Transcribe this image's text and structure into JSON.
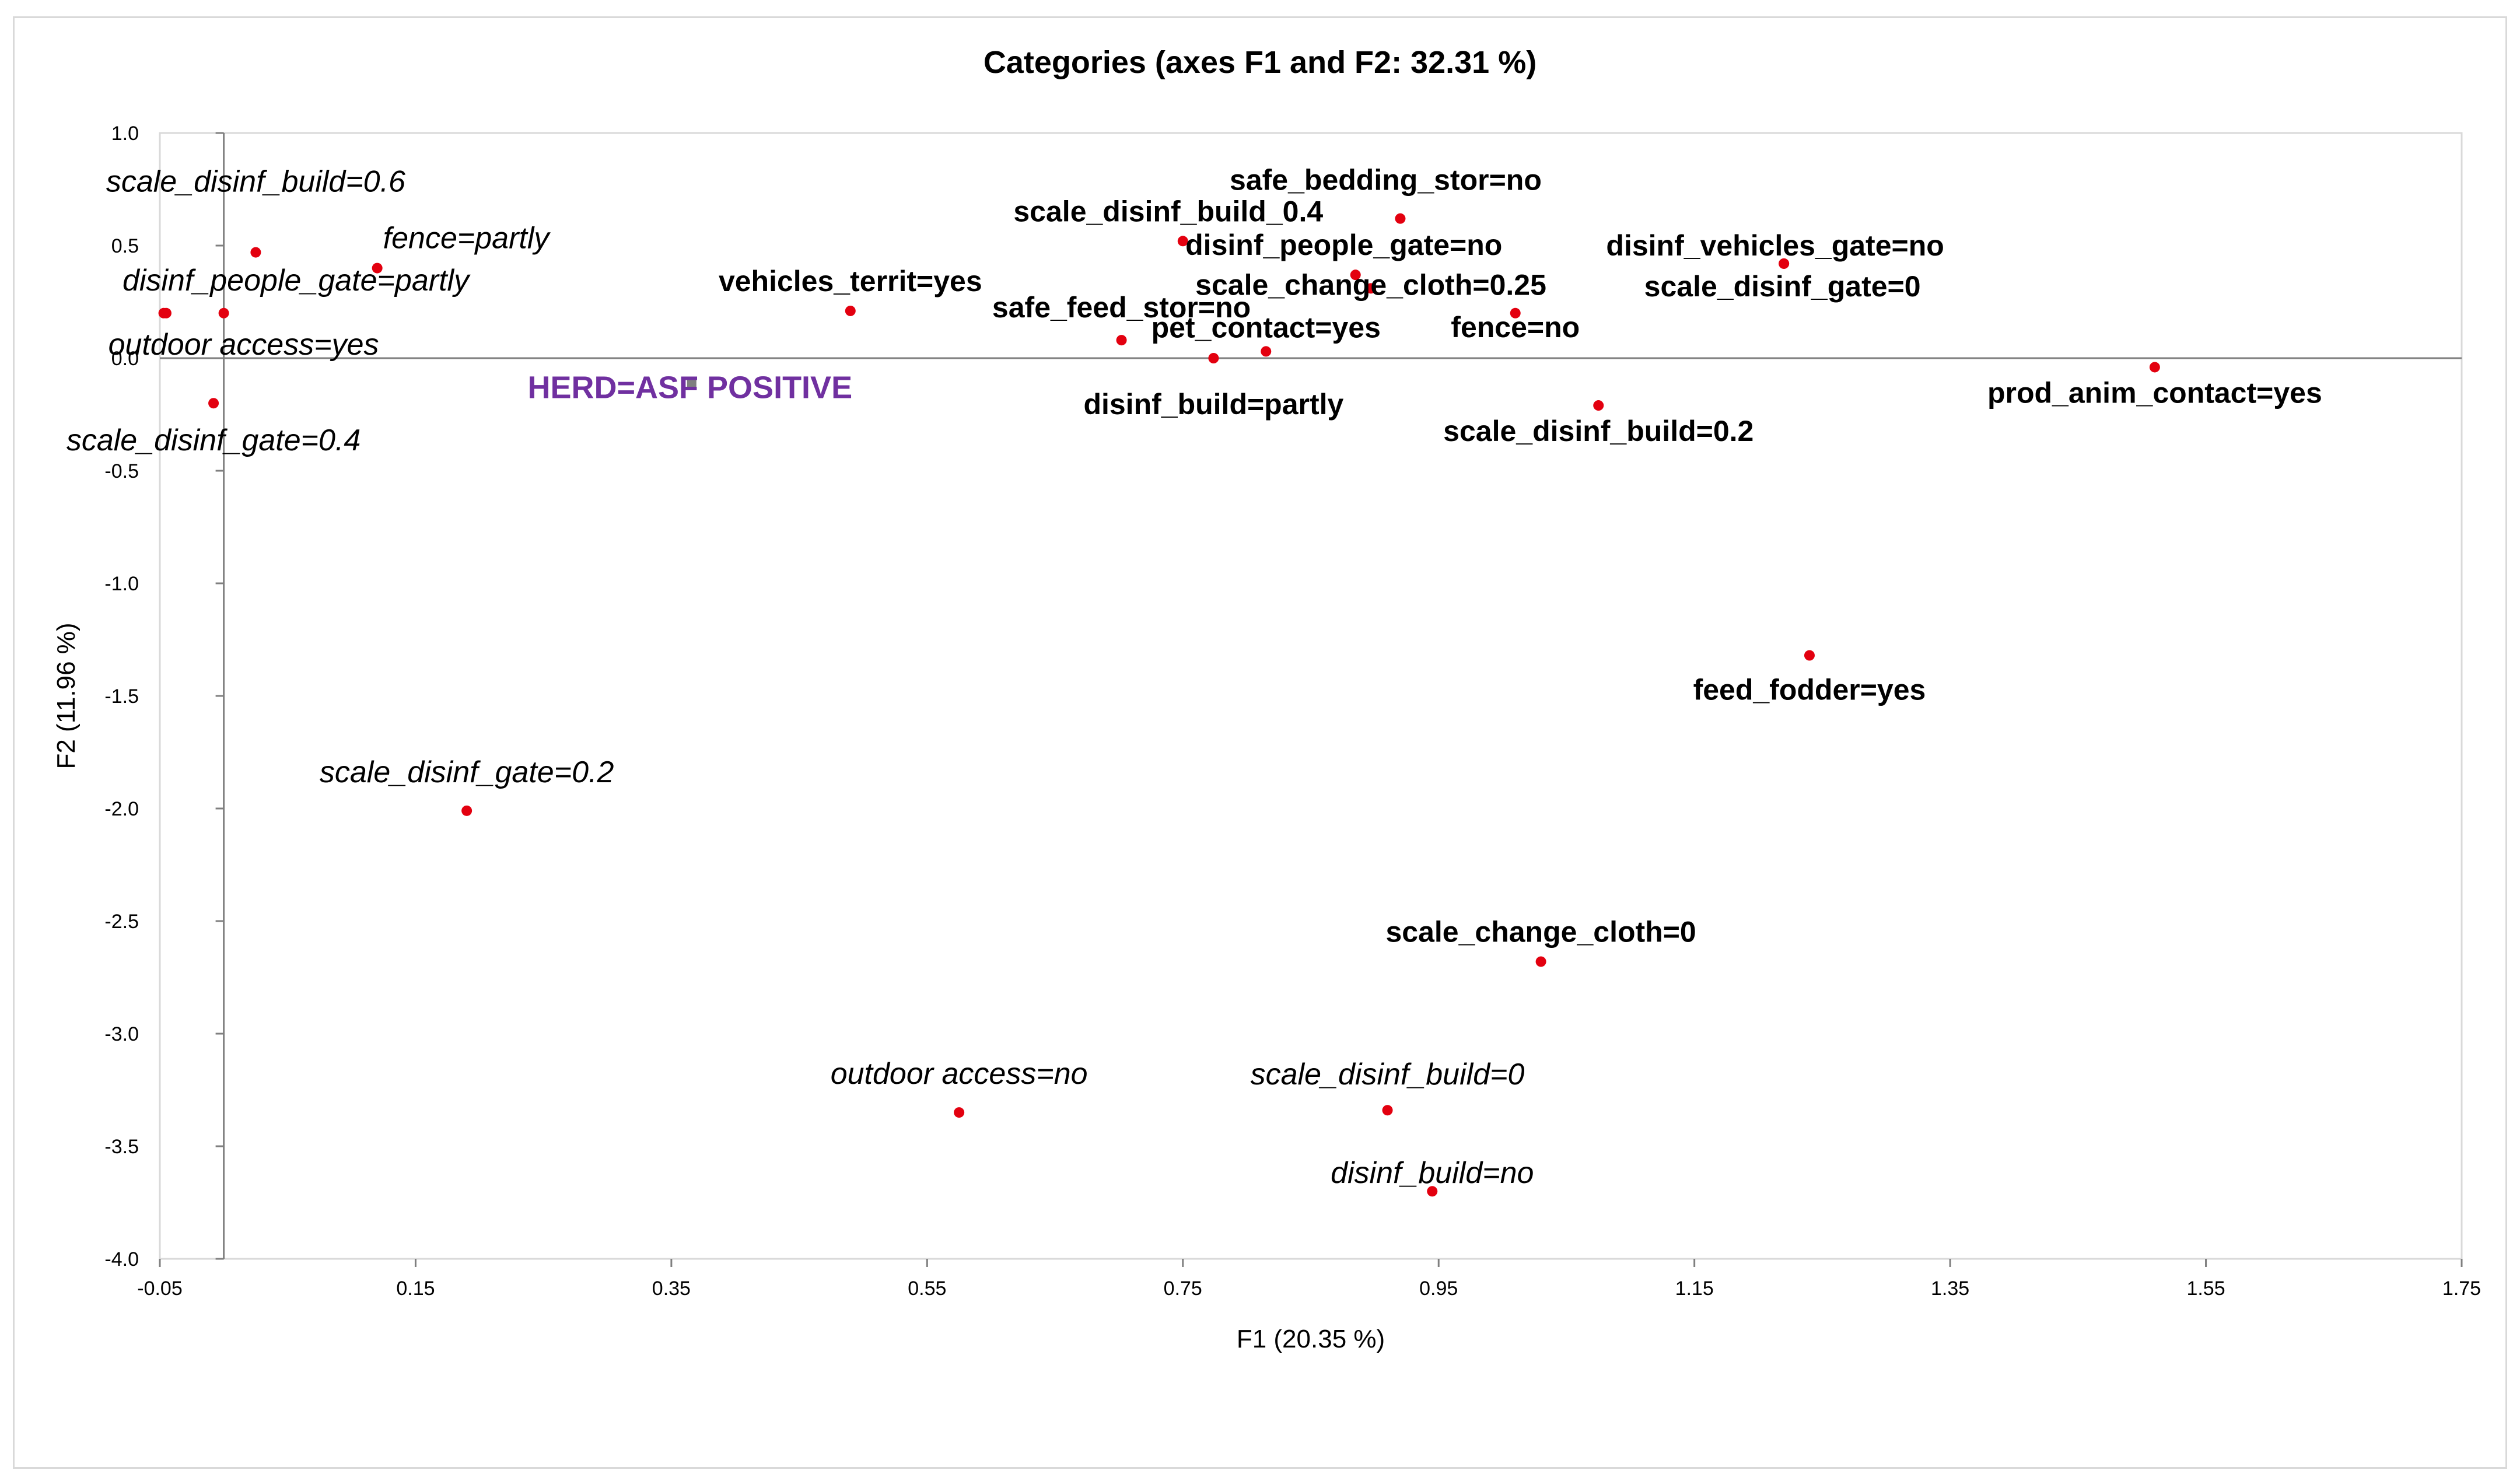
{
  "chart_data": {
    "type": "scatter",
    "title": "Categories (axes F1 and F2: 32.31 %)",
    "xlabel": "F1 (20.35 %)",
    "ylabel": "F2 (11.96 %)",
    "xlim": [
      -0.05,
      1.75
    ],
    "ylim": [
      -4.0,
      1.0
    ],
    "xticks": [
      "-0.05",
      "0.15",
      "0.35",
      "0.55",
      "0.75",
      "0.95",
      "1.15",
      "1.35",
      "1.55",
      "1.75"
    ],
    "yticks": [
      "1.0",
      "0.5",
      "0.0",
      "-0.5",
      "-1.0",
      "-1.5",
      "-2.0",
      "-2.5",
      "-3.0",
      "-3.5",
      "-4.0"
    ],
    "point_color": "#e3000f",
    "points": [
      {
        "label": "scale_disinf_build=0.6",
        "x": 0.025,
        "y": 0.47,
        "style": "italic",
        "anchor": "middle",
        "dx": 0,
        "dy": -2.4
      },
      {
        "label": "fence=partly",
        "x": 0.12,
        "y": 0.4,
        "style": "italic",
        "anchor": "start",
        "dx": 0.2,
        "dy": -1.0
      },
      {
        "label": "disinf_people_gate=partly",
        "x": -0.045,
        "y": 0.2,
        "style": "italic",
        "anchor": "start",
        "dx": -1.5,
        "dy": -1.1
      },
      {
        "label": "",
        "x": 0.0,
        "y": 0.2
      },
      {
        "label": "outdoor access=yes",
        "x": -0.047,
        "y": 0.2,
        "style": "italic",
        "anchor": "start",
        "dx": -1.9,
        "dy": 1.1
      },
      {
        "label": "scale_disinf_gate=0.4",
        "x": -0.008,
        "y": -0.2,
        "style": "italic",
        "anchor": "middle",
        "dx": 0,
        "dy": 1.3
      },
      {
        "label": "vehicles_territ=yes",
        "x": 0.49,
        "y": 0.21,
        "style": "bold",
        "anchor": "middle",
        "dx": 0,
        "dy": -1.0
      },
      {
        "label": "scale_disinf_gate=0.2",
        "x": 0.19,
        "y": -2.01,
        "style": "italic",
        "anchor": "middle",
        "dx": 0,
        "dy": -1.3
      },
      {
        "label": "outdoor access=no",
        "x": 0.575,
        "y": -3.35,
        "style": "italic",
        "anchor": "middle",
        "dx": 0,
        "dy": -1.3
      },
      {
        "label": "safe_feed_stor=no",
        "x": 0.702,
        "y": 0.08,
        "style": "bold",
        "anchor": "middle",
        "dx": 0,
        "dy": -1.1
      },
      {
        "label": "scale_disinf_build_0.4",
        "x": 0.75,
        "y": 0.52,
        "style": "bold",
        "anchor": "middle",
        "dx": -0.5,
        "dy": -1.0
      },
      {
        "label": "pet_contact=yes",
        "x": 0.815,
        "y": 0.03,
        "style": "bold",
        "anchor": "middle",
        "dx": 0,
        "dy": -0.8
      },
      {
        "label": "disinf_build=partly",
        "x": 0.774,
        "y": 0.0,
        "style": "bold",
        "anchor": "middle",
        "dx": 0,
        "dy": 1.6
      },
      {
        "label": "safe_bedding_stor=no",
        "x": 0.92,
        "y": 0.62,
        "style": "bold",
        "anchor": "middle",
        "dx": -0.5,
        "dy": -1.3
      },
      {
        "label": "disinf_people_gate=no",
        "x": 0.885,
        "y": 0.37,
        "style": "bold",
        "anchor": "middle",
        "dx": -0.4,
        "dy": -1.0
      },
      {
        "label": "scale_change_cloth=0.25",
        "x": 0.897,
        "y": 0.31,
        "style": "bold",
        "anchor": "middle",
        "dx": 0,
        "dy": -0.1
      },
      {
        "label": "fence=no",
        "x": 1.01,
        "y": 0.2,
        "style": "bold",
        "anchor": "middle",
        "dx": 0,
        "dy": 0.5
      },
      {
        "label": "disinf_vehicles_gate=no",
        "x": 1.22,
        "y": 0.42,
        "style": "bold",
        "anchor": "middle",
        "dx": -0.3,
        "dy": -0.6
      },
      {
        "label": "scale_disinf_gate=0",
        "x": 1.22,
        "y": 0.42,
        "style": "bold",
        "anchor": "middle",
        "dx": -0.05,
        "dy": 0.8
      },
      {
        "label": "scale_disinf_build=0.2",
        "x": 1.075,
        "y": -0.21,
        "style": "bold",
        "anchor": "middle",
        "dx": 0,
        "dy": 0.9
      },
      {
        "label": "prod_anim_contact=yes",
        "x": 1.51,
        "y": -0.04,
        "style": "bold",
        "anchor": "middle",
        "dx": 0,
        "dy": 0.9
      },
      {
        "label": "feed_fodder=yes",
        "x": 1.24,
        "y": -1.32,
        "style": "bold",
        "anchor": "middle",
        "dx": 0,
        "dy": 1.2
      },
      {
        "label": "scale_change_cloth=0",
        "x": 1.03,
        "y": -2.68,
        "style": "bold",
        "anchor": "middle",
        "dx": 0,
        "dy": -1.0
      },
      {
        "label": "scale_disinf_build=0",
        "x": 0.91,
        "y": -3.34,
        "style": "italic",
        "anchor": "middle",
        "dx": 0,
        "dy": -1.2
      },
      {
        "label": "disinf_build=no",
        "x": 0.945,
        "y": -3.7,
        "style": "italic",
        "anchor": "middle",
        "dx": 0,
        "dy": -0.6
      }
    ],
    "supplementary": {
      "label": "HERD=ASF POSITIVE",
      "x": 0.36,
      "y": -0.1,
      "color": "#7030a0",
      "marker_color": "#7f7f7f"
    }
  }
}
